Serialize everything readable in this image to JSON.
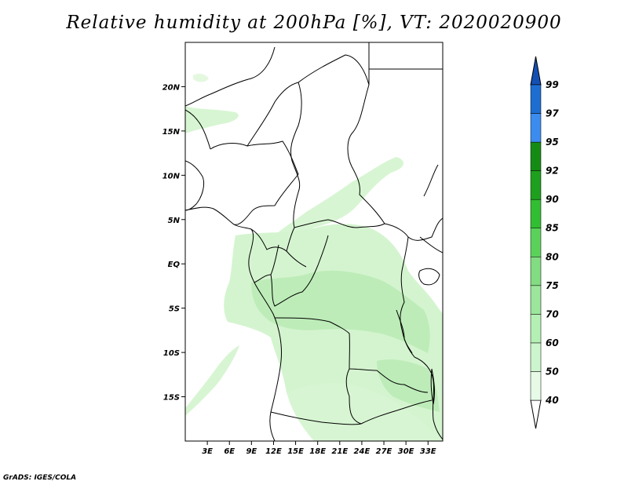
{
  "title": "Relative humidity at 200hPa [%], VT: 2020020900",
  "credit": "GrADS: IGES/COLA",
  "map": {
    "lon_range": [
      0,
      35
    ],
    "lat_range": [
      -20,
      25
    ],
    "lat_ticks": [
      {
        "value": 20,
        "label": "20N"
      },
      {
        "value": 15,
        "label": "15N"
      },
      {
        "value": 10,
        "label": "10N"
      },
      {
        "value": 5,
        "label": "5N"
      },
      {
        "value": 0,
        "label": "EQ"
      },
      {
        "value": -5,
        "label": "5S"
      },
      {
        "value": -10,
        "label": "10S"
      },
      {
        "value": -15,
        "label": "15S"
      }
    ],
    "lon_ticks": [
      {
        "value": 3,
        "label": "3E"
      },
      {
        "value": 6,
        "label": "6E"
      },
      {
        "value": 9,
        "label": "9E"
      },
      {
        "value": 12,
        "label": "12E"
      },
      {
        "value": 15,
        "label": "15E"
      },
      {
        "value": 18,
        "label": "18E"
      },
      {
        "value": 21,
        "label": "21E"
      },
      {
        "value": 24,
        "label": "24E"
      },
      {
        "value": 27,
        "label": "27E"
      },
      {
        "value": 30,
        "label": "30E"
      },
      {
        "value": 33,
        "label": "33E"
      }
    ]
  },
  "colorbar": {
    "levels": [
      "40",
      "50",
      "60",
      "70",
      "75",
      "80",
      "85",
      "90",
      "92",
      "95",
      "97",
      "99"
    ],
    "colors": [
      "#ffffff",
      "#e6fae6",
      "#cdf5cd",
      "#b4f0b4",
      "#9be69b",
      "#82dc82",
      "#5ad25a",
      "#32be32",
      "#1ea01e",
      "#148c14",
      "#3c8cf0",
      "#1e6ed2",
      "#1450b4"
    ]
  },
  "colors": {
    "background": "#ffffff",
    "border": "#000000",
    "shade_light": "#d7f5d2",
    "shade_mid": "#bdecb8"
  }
}
